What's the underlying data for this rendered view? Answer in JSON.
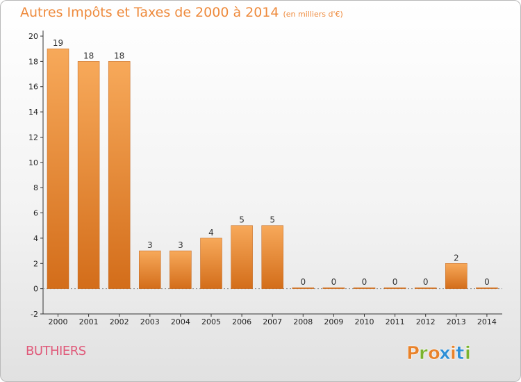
{
  "header": {
    "title": "Autres Impôts et Taxes de 2000 à 2014",
    "subtitle": "(en milliers d'€)"
  },
  "commune": "BUTHIERS",
  "logo": {
    "text": "Proxiti",
    "letters": [
      "P",
      "r",
      "o",
      "x",
      "i",
      "t",
      "i"
    ],
    "letter_colors": [
      "#e8822a",
      "#7bb32e",
      "#e8822a",
      "#2e8fd6",
      "#e8822a",
      "#2e8fd6",
      "#7bb32e"
    ]
  },
  "colors": {
    "bar_fill_top": "#f7a95a",
    "bar_fill_bottom": "#d36d1a",
    "bar_stroke": "#c0651d",
    "title": "#ee8a3c",
    "commune": "#e05a7a"
  },
  "chart_data": {
    "type": "bar",
    "title": "Autres Impôts et Taxes de 2000 à 2014",
    "subtitle": "(en milliers d'€)",
    "categories": [
      "2000",
      "2001",
      "2002",
      "2003",
      "2004",
      "2005",
      "2006",
      "2007",
      "2008",
      "2009",
      "2010",
      "2011",
      "2012",
      "2013",
      "2014"
    ],
    "values": [
      19,
      18,
      18,
      3,
      3,
      4,
      5,
      5,
      0,
      0,
      0,
      0,
      0,
      2,
      0
    ],
    "data_labels": [
      "19",
      "18",
      "18",
      "3",
      "3",
      "4",
      "5",
      "5",
      "0",
      "0",
      "0",
      "0",
      "0",
      "2",
      "0"
    ],
    "ylim": [
      -2,
      20
    ],
    "yticks": [
      -2,
      0,
      2,
      4,
      6,
      8,
      10,
      12,
      14,
      16,
      18,
      20
    ],
    "ytick_labels": [
      "-2",
      "0",
      "2",
      "4",
      "6",
      "8",
      "10",
      "12",
      "14",
      "16",
      "18",
      "20"
    ],
    "xlabel": "",
    "ylabel": "",
    "grid": false,
    "legend": "none"
  }
}
